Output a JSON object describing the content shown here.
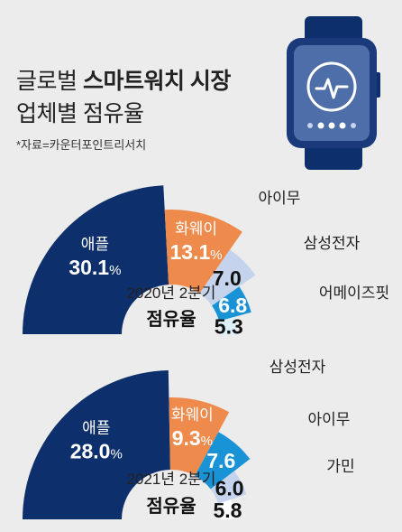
{
  "title": {
    "line1_normal": "글로벌 ",
    "line1_bold": "스마트워치 시장",
    "line2": "업체별 점유율"
  },
  "source": "*자료=카운터포인트리서치",
  "chart_data": [
    {
      "type": "pie",
      "period_label": "2020년 2분기",
      "subtitle": "점유율",
      "slices": [
        {
          "name": "애플",
          "value": 30.1,
          "color": "#0d2f6b"
        },
        {
          "name": "화웨이",
          "value": 13.1,
          "color": "#ee8b4c"
        },
        {
          "name": "아이무",
          "value": 7.0,
          "color": "#c6d3ec"
        },
        {
          "name": "삼성전자",
          "value": 6.8,
          "color": "#1a93d6"
        },
        {
          "name": "어메이즈핏",
          "value": 5.3,
          "color": "#dcf0fa"
        }
      ]
    },
    {
      "type": "pie",
      "period_label": "2021년 2분기",
      "subtitle": "점유율",
      "slices": [
        {
          "name": "애플",
          "value": 28.0,
          "color": "#0d2f6b"
        },
        {
          "name": "화웨이",
          "value": 9.3,
          "color": "#ee8b4c"
        },
        {
          "name": "삼성전자",
          "value": 7.6,
          "color": "#1a93d6"
        },
        {
          "name": "아이무",
          "value": 6.0,
          "color": "#c6d3ec"
        },
        {
          "name": "가민",
          "value": 5.8,
          "color": "#ffffff"
        }
      ]
    }
  ]
}
